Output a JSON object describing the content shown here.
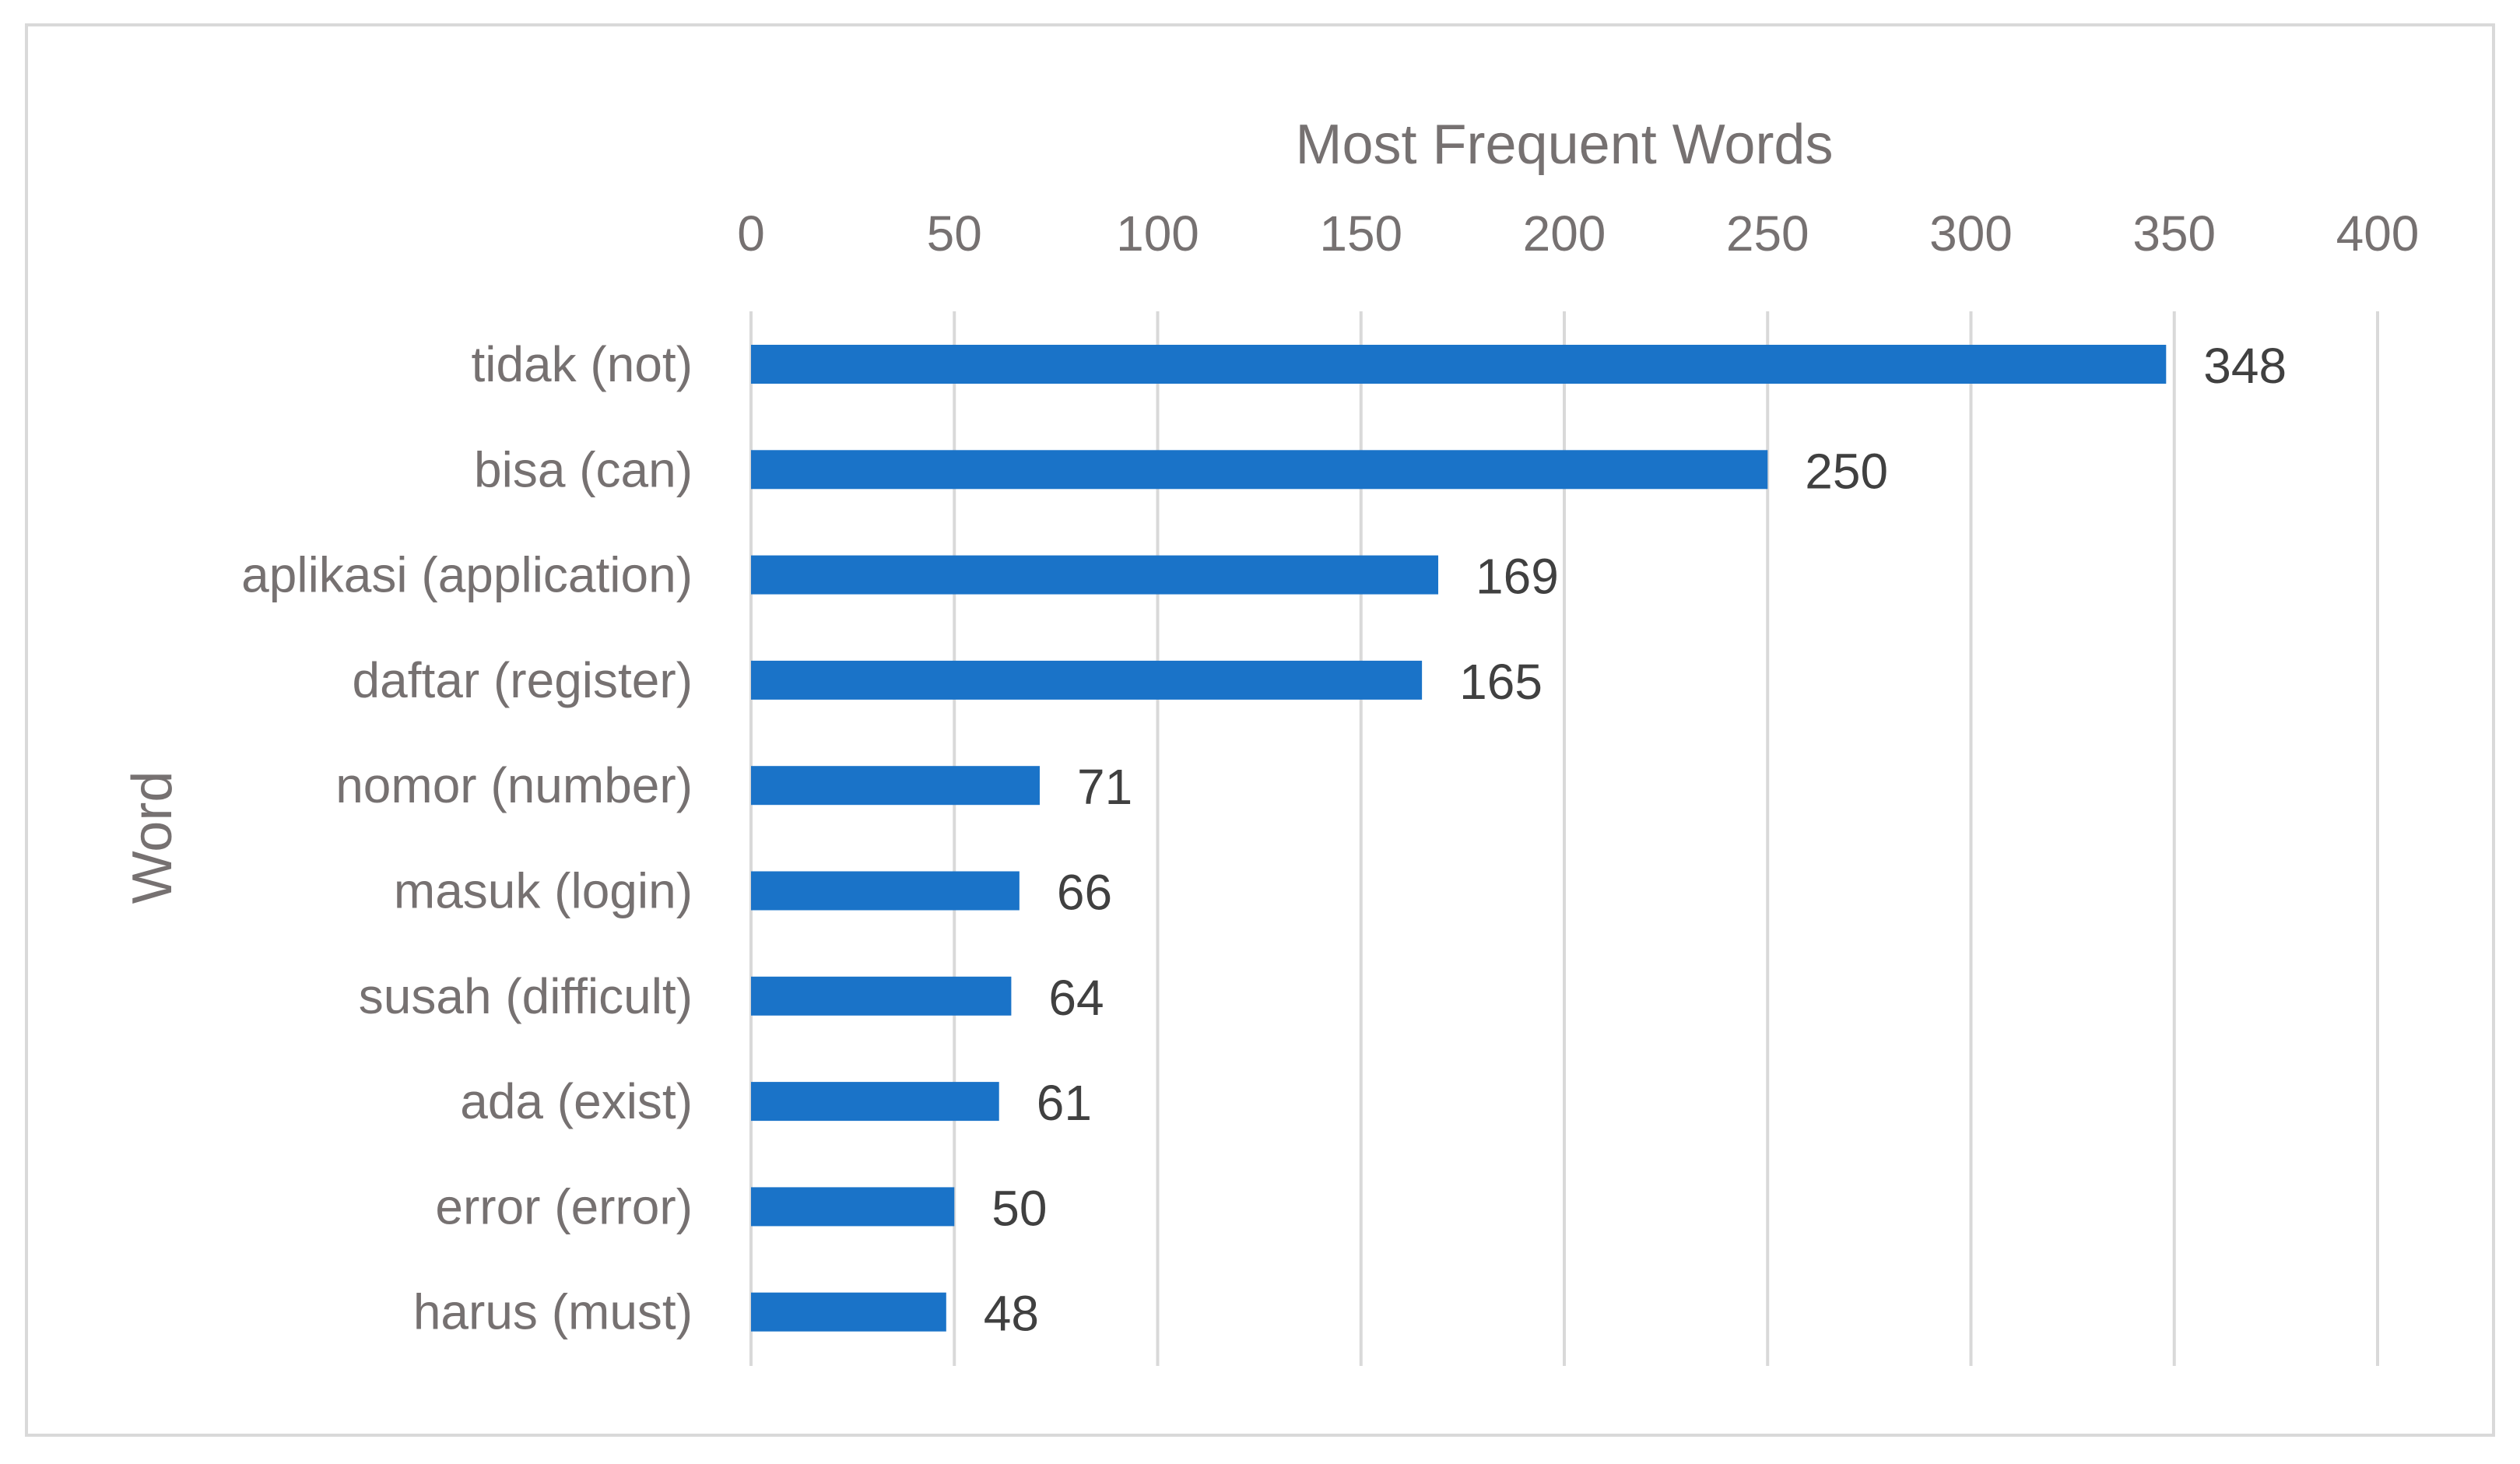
{
  "chart_data": {
    "type": "bar",
    "orientation": "horizontal",
    "title": "Most Frequent Words",
    "xlabel": "",
    "ylabel": "Word",
    "xlim": [
      0,
      400
    ],
    "x_ticks": [
      "0",
      "50",
      "100",
      "150",
      "200",
      "250",
      "300",
      "350",
      "400"
    ],
    "x_tick_values": [
      0,
      50,
      100,
      150,
      200,
      250,
      300,
      350,
      400
    ],
    "x_axis_position": "top",
    "grid": true,
    "legend": "none",
    "categories": [
      "tidak (not)",
      "bisa (can)",
      "aplikasi (application)",
      "daftar (register)",
      "nomor (number)",
      "masuk (login)",
      "susah (difficult)",
      "ada (exist)",
      "error (error)",
      "harus (must)"
    ],
    "values": [
      348,
      250,
      169,
      165,
      71,
      66,
      64,
      61,
      50,
      48
    ],
    "data_labels": [
      "348",
      "250",
      "169",
      "165",
      "71",
      "66",
      "64",
      "61",
      "50",
      "48"
    ],
    "bar_color": "#1a73c8",
    "grid_color": "#d9d9d9",
    "text_color": "#767171",
    "label_color": "#404040"
  }
}
